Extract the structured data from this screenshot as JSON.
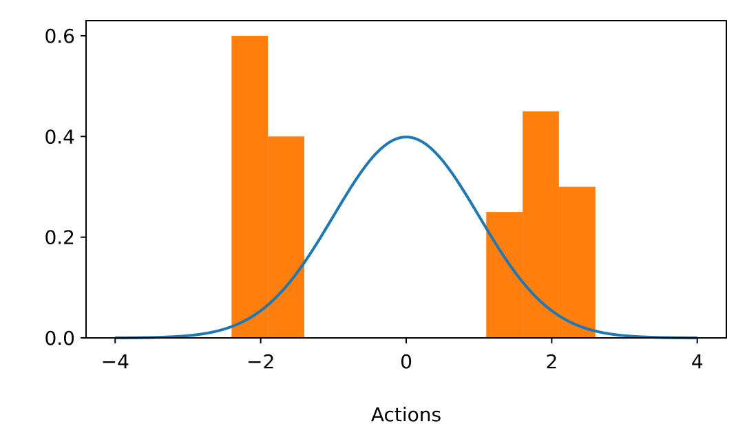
{
  "chart_data": {
    "type": "bar",
    "xlabel": "Actions",
    "ylabel": "",
    "xlim": [
      -4.4,
      4.4
    ],
    "ylim": [
      0,
      0.63
    ],
    "xticks": [
      -4,
      -2,
      0,
      2,
      4
    ],
    "xtick_labels": [
      "−4",
      "−2",
      "0",
      "2",
      "4"
    ],
    "yticks": [
      0,
      0.2,
      0.4,
      0.6
    ],
    "ytick_labels": [
      "0.0",
      "0.2",
      "0.4",
      "0.6"
    ],
    "grid": false,
    "histogram": {
      "color": "#ff7f0e",
      "bins": [
        {
          "x0": -2.4,
          "x1": -1.9,
          "value": 0.6
        },
        {
          "x0": -1.9,
          "x1": -1.4,
          "value": 0.4
        },
        {
          "x0": 1.1,
          "x1": 1.6,
          "value": 0.25
        },
        {
          "x0": 1.6,
          "x1": 2.1,
          "value": 0.45
        },
        {
          "x0": 2.1,
          "x1": 2.6,
          "value": 0.3
        }
      ]
    },
    "curve": {
      "type": "line",
      "color": "#1f77b4",
      "function": "standard normal pdf",
      "x_range": [
        -4,
        4
      ],
      "peak": 0.399
    }
  }
}
